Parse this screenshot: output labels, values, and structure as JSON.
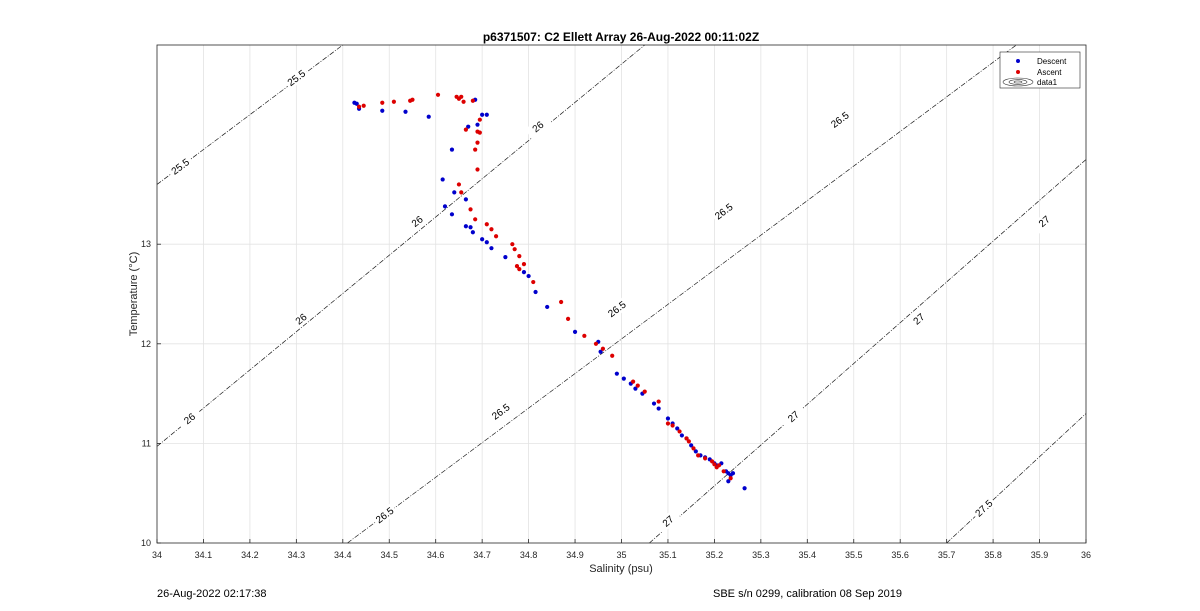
{
  "chart_data": {
    "type": "scatter",
    "title": "p6371507: C2 Ellett Array 26-Aug-2022 00:11:02Z",
    "xlabel": "Salinity (psu)",
    "ylabel": "Temperature (°C)",
    "xlim": [
      34,
      36
    ],
    "ylim": [
      10,
      15
    ],
    "xticks": [
      "34",
      "34.1",
      "34.2",
      "34.3",
      "34.4",
      "34.5",
      "34.6",
      "34.7",
      "34.8",
      "34.9",
      "35",
      "35.1",
      "35.2",
      "35.3",
      "35.4",
      "35.5",
      "35.6",
      "35.7",
      "35.8",
      "35.9",
      "36"
    ],
    "yticks": [
      "10",
      "11",
      "12",
      "13"
    ],
    "grid": true,
    "legend_position": "top-right",
    "series": [
      {
        "name": "Descent",
        "color": "#0000cc",
        "points": [
          [
            34.425,
            14.42
          ],
          [
            34.43,
            14.41
          ],
          [
            34.435,
            14.36
          ],
          [
            34.485,
            14.34
          ],
          [
            34.535,
            14.33
          ],
          [
            34.585,
            14.28
          ],
          [
            34.685,
            14.45
          ],
          [
            34.7,
            14.3
          ],
          [
            34.71,
            14.3
          ],
          [
            34.67,
            14.18
          ],
          [
            34.69,
            14.2
          ],
          [
            34.635,
            13.95
          ],
          [
            34.615,
            13.65
          ],
          [
            34.64,
            13.52
          ],
          [
            34.665,
            13.45
          ],
          [
            34.62,
            13.38
          ],
          [
            34.635,
            13.3
          ],
          [
            34.665,
            13.18
          ],
          [
            34.675,
            13.17
          ],
          [
            34.68,
            13.12
          ],
          [
            34.7,
            13.05
          ],
          [
            34.71,
            13.02
          ],
          [
            34.72,
            12.96
          ],
          [
            34.75,
            12.87
          ],
          [
            34.79,
            12.72
          ],
          [
            34.8,
            12.68
          ],
          [
            34.815,
            12.52
          ],
          [
            34.84,
            12.37
          ],
          [
            34.9,
            12.12
          ],
          [
            34.95,
            12.02
          ],
          [
            34.955,
            11.92
          ],
          [
            34.99,
            11.7
          ],
          [
            35.005,
            11.65
          ],
          [
            35.02,
            11.6
          ],
          [
            35.03,
            11.55
          ],
          [
            35.045,
            11.5
          ],
          [
            35.07,
            11.4
          ],
          [
            35.08,
            11.35
          ],
          [
            35.1,
            11.25
          ],
          [
            35.11,
            11.2
          ],
          [
            35.12,
            11.15
          ],
          [
            35.13,
            11.08
          ],
          [
            35.14,
            11.05
          ],
          [
            35.15,
            10.98
          ],
          [
            35.16,
            10.92
          ],
          [
            35.17,
            10.88
          ],
          [
            35.18,
            10.86
          ],
          [
            35.19,
            10.84
          ],
          [
            35.2,
            10.8
          ],
          [
            35.205,
            10.78
          ],
          [
            35.215,
            10.8
          ],
          [
            35.225,
            10.72
          ],
          [
            35.23,
            10.7
          ],
          [
            35.235,
            10.68
          ],
          [
            35.24,
            10.7
          ],
          [
            35.23,
            10.62
          ],
          [
            35.265,
            10.55
          ]
        ]
      },
      {
        "name": "Ascent",
        "color": "#dd0000",
        "points": [
          [
            34.435,
            14.38
          ],
          [
            34.445,
            14.39
          ],
          [
            34.485,
            14.42
          ],
          [
            34.51,
            14.43
          ],
          [
            34.545,
            14.44
          ],
          [
            34.55,
            14.45
          ],
          [
            34.605,
            14.5
          ],
          [
            34.645,
            14.48
          ],
          [
            34.655,
            14.48
          ],
          [
            34.65,
            14.46
          ],
          [
            34.66,
            14.43
          ],
          [
            34.68,
            14.44
          ],
          [
            34.695,
            14.25
          ],
          [
            34.69,
            14.13
          ],
          [
            34.695,
            14.12
          ],
          [
            34.69,
            14.02
          ],
          [
            34.665,
            14.15
          ],
          [
            34.685,
            13.95
          ],
          [
            34.69,
            13.75
          ],
          [
            34.65,
            13.6
          ],
          [
            34.655,
            13.52
          ],
          [
            34.675,
            13.35
          ],
          [
            34.685,
            13.25
          ],
          [
            34.71,
            13.2
          ],
          [
            34.72,
            13.15
          ],
          [
            34.73,
            13.08
          ],
          [
            34.765,
            13.0
          ],
          [
            34.77,
            12.95
          ],
          [
            34.78,
            12.88
          ],
          [
            34.775,
            12.78
          ],
          [
            34.78,
            12.75
          ],
          [
            34.79,
            12.8
          ],
          [
            34.81,
            12.62
          ],
          [
            34.87,
            12.42
          ],
          [
            34.885,
            12.25
          ],
          [
            34.92,
            12.08
          ],
          [
            34.945,
            12.0
          ],
          [
            34.96,
            11.95
          ],
          [
            34.98,
            11.88
          ],
          [
            35.025,
            11.62
          ],
          [
            35.035,
            11.58
          ],
          [
            35.05,
            11.52
          ],
          [
            35.08,
            11.42
          ],
          [
            35.1,
            11.2
          ],
          [
            35.11,
            11.18
          ],
          [
            35.125,
            11.12
          ],
          [
            35.14,
            11.05
          ],
          [
            35.145,
            11.02
          ],
          [
            35.155,
            10.95
          ],
          [
            35.165,
            10.88
          ],
          [
            35.18,
            10.85
          ],
          [
            35.195,
            10.82
          ],
          [
            35.2,
            10.79
          ],
          [
            35.205,
            10.76
          ],
          [
            35.21,
            10.78
          ],
          [
            35.22,
            10.72
          ],
          [
            35.235,
            10.65
          ]
        ]
      },
      {
        "name": "data1",
        "color": "#000000",
        "points": []
      }
    ],
    "isopycnals": [
      {
        "label": "25.5",
        "points": [
          [
            34.0,
            13.6
          ],
          [
            34.4,
            15.0
          ]
        ],
        "label_positions": [
          [
            34.05,
            13.78
          ],
          [
            34.3,
            14.67
          ]
        ]
      },
      {
        "label": "26",
        "points": [
          [
            34.0,
            10.97
          ],
          [
            35.05,
            15.0
          ]
        ],
        "label_positions": [
          [
            34.07,
            11.25
          ],
          [
            34.31,
            12.25
          ],
          [
            34.56,
            13.23
          ],
          [
            34.82,
            14.18
          ]
        ]
      },
      {
        "label": "26.5",
        "points": [
          [
            34.41,
            10.0
          ],
          [
            35.85,
            15.0
          ]
        ],
        "label_positions": [
          [
            34.49,
            10.28
          ],
          [
            34.74,
            11.32
          ],
          [
            34.99,
            12.35
          ],
          [
            35.22,
            13.33
          ],
          [
            35.47,
            14.25
          ]
        ]
      },
      {
        "label": "27",
        "points": [
          [
            35.06,
            10.0
          ],
          [
            36.0,
            13.85
          ]
        ],
        "label_positions": [
          [
            35.1,
            10.22
          ],
          [
            35.37,
            11.27
          ],
          [
            35.64,
            12.25
          ],
          [
            35.91,
            13.23
          ]
        ]
      },
      {
        "label": "27.5",
        "points": [
          [
            35.7,
            10.0
          ],
          [
            36.0,
            11.3
          ]
        ],
        "label_positions": [
          [
            35.78,
            10.35
          ]
        ]
      }
    ]
  },
  "footer": {
    "left": "26-Aug-2022 02:17:38",
    "right": "SBE s/n 0299, calibration 08 Sep 2019"
  }
}
